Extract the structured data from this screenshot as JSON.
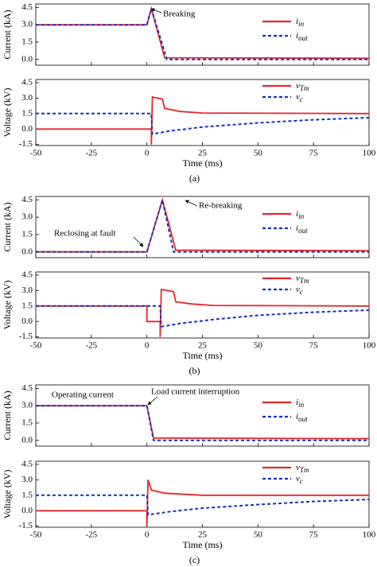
{
  "chart_data": [
    {
      "type": "line",
      "ylabel": "Current (kA)",
      "xlim": [
        -50,
        100
      ],
      "ylim": [
        -0.5,
        4.8
      ],
      "xticks": [
        -50,
        -25,
        0,
        25,
        50,
        75,
        100
      ],
      "xtick_labels": false,
      "yticks": [
        {
          "value": 0,
          "label": "0.0"
        },
        1.5,
        {
          "value": 3,
          "label": "3.0"
        },
        4.5
      ],
      "annotations": [
        "Breaking"
      ],
      "series": [
        {
          "name": "i",
          "subscript": "in",
          "color": "#e3262b",
          "dash": false,
          "x": [
            -50,
            0,
            2,
            8,
            100
          ],
          "values": [
            3.0,
            3.0,
            4.4,
            0.15,
            0.1
          ]
        },
        {
          "name": "i",
          "subscript": "out",
          "color": "#1a2fc0",
          "dash": true,
          "x": [
            -50,
            0,
            2,
            9,
            100
          ],
          "values": [
            3.0,
            3.0,
            4.4,
            0.0,
            0.0
          ]
        }
      ]
    },
    {
      "type": "line",
      "ylabel": "Voltage (kV)",
      "xlabel": "Time (ms)",
      "caption": "(a)",
      "xlim": [
        -50,
        100
      ],
      "ylim": [
        -1.6,
        4.8
      ],
      "xticks": [
        -50,
        -25,
        0,
        25,
        50,
        75,
        100
      ],
      "xtick_labels": true,
      "yticks": [
        -1.5,
        {
          "value": 0,
          "label": "0.0"
        },
        1.5,
        {
          "value": 3,
          "label": "3.0"
        },
        4.5
      ],
      "series": [
        {
          "name": "v",
          "subscript": "Tm",
          "color": "#e3262b",
          "dash": false,
          "x": [
            -50,
            2,
            2,
            2.5,
            7,
            8,
            15,
            25,
            100
          ],
          "values": [
            0,
            0,
            -1.5,
            3.1,
            2.9,
            2.0,
            1.7,
            1.55,
            1.5
          ]
        },
        {
          "name": "v",
          "subscript": "c",
          "color": "#1a2fc0",
          "dash": true,
          "x": [
            -50,
            2,
            2.5,
            10,
            25,
            50,
            75,
            100
          ],
          "values": [
            1.5,
            1.5,
            -0.5,
            -0.2,
            0.2,
            0.6,
            0.9,
            1.1
          ]
        }
      ]
    },
    {
      "type": "line",
      "ylabel": "Current (kA)",
      "xlim": [
        -50,
        100
      ],
      "ylim": [
        -0.5,
        4.8
      ],
      "xticks": [
        -50,
        -25,
        0,
        25,
        50,
        75,
        100
      ],
      "xtick_labels": false,
      "yticks": [
        {
          "value": 0,
          "label": "0.0"
        },
        1.5,
        {
          "value": 3,
          "label": "3.0"
        },
        4.5
      ],
      "annotations": [
        "Re-breaking",
        "Reclosing at fault"
      ],
      "series": [
        {
          "name": "i",
          "subscript": "in",
          "color": "#e3262b",
          "dash": false,
          "x": [
            -50,
            0,
            7,
            13,
            100
          ],
          "values": [
            0,
            0,
            4.5,
            0.15,
            0.1
          ]
        },
        {
          "name": "i",
          "subscript": "out",
          "color": "#1a2fc0",
          "dash": true,
          "x": [
            -50,
            0,
            7,
            12,
            100
          ],
          "values": [
            0,
            0,
            4.5,
            0,
            0
          ]
        }
      ]
    },
    {
      "type": "line",
      "ylabel": "Voltage (kV)",
      "xlabel": "Time (ms)",
      "caption": "(b)",
      "xlim": [
        -50,
        100
      ],
      "ylim": [
        -1.6,
        4.8
      ],
      "xticks": [
        -50,
        -25,
        0,
        25,
        50,
        75,
        100
      ],
      "xtick_labels": true,
      "yticks": [
        -1.5,
        {
          "value": 0,
          "label": "0.0"
        },
        1.5,
        {
          "value": 3,
          "label": "3.0"
        },
        4.5
      ],
      "series": [
        {
          "name": "v",
          "subscript": "Tm",
          "color": "#e3262b",
          "dash": false,
          "x": [
            -50,
            0,
            0,
            6,
            6,
            6.5,
            12,
            13,
            20,
            30,
            100
          ],
          "values": [
            1.5,
            1.5,
            0,
            0,
            -1.5,
            3.1,
            2.9,
            1.9,
            1.7,
            1.55,
            1.5
          ]
        },
        {
          "name": "v",
          "subscript": "c",
          "color": "#1a2fc0",
          "dash": true,
          "x": [
            -50,
            6,
            6.5,
            15,
            30,
            50,
            75,
            100
          ],
          "values": [
            1.5,
            1.5,
            -0.5,
            -0.2,
            0.2,
            0.6,
            0.9,
            1.1
          ]
        }
      ]
    },
    {
      "type": "line",
      "ylabel": "Current (kA)",
      "xlim": [
        -50,
        100
      ],
      "ylim": [
        -0.5,
        4.8
      ],
      "xticks": [
        -50,
        -25,
        0,
        25,
        50,
        75,
        100
      ],
      "xtick_labels": false,
      "yticks": [
        {
          "value": 0,
          "label": "0.0"
        },
        1.5,
        {
          "value": 3,
          "label": "3.0"
        },
        4.5
      ],
      "annotations": [
        "Operating current",
        "Load current interruption"
      ],
      "series": [
        {
          "name": "i",
          "subscript": "in",
          "color": "#e3262b",
          "dash": false,
          "x": [
            -50,
            0,
            3,
            100
          ],
          "values": [
            3.0,
            3.0,
            0.2,
            0.15
          ]
        },
        {
          "name": "i",
          "subscript": "out",
          "color": "#1a2fc0",
          "dash": true,
          "x": [
            -50,
            0,
            3,
            100
          ],
          "values": [
            3.0,
            3.0,
            0,
            0
          ]
        }
      ]
    },
    {
      "type": "line",
      "ylabel": "Voltage (kV)",
      "xlabel": "Time (ms)",
      "caption": "(c)",
      "xlim": [
        -50,
        100
      ],
      "ylim": [
        -1.6,
        4.8
      ],
      "xticks": [
        -50,
        -25,
        0,
        25,
        50,
        75,
        100
      ],
      "xtick_labels": true,
      "yticks": [
        -1.5,
        {
          "value": 0,
          "label": "0.0"
        },
        1.5,
        {
          "value": 3,
          "label": "3.0"
        },
        4.5
      ],
      "series": [
        {
          "name": "v",
          "subscript": "Tm",
          "color": "#e3262b",
          "dash": false,
          "x": [
            -50,
            0,
            0,
            0.5,
            2,
            8,
            25,
            100
          ],
          "values": [
            0,
            0,
            -1.5,
            3.0,
            2.0,
            1.7,
            1.5,
            1.5
          ]
        },
        {
          "name": "v",
          "subscript": "c",
          "color": "#1a2fc0",
          "dash": true,
          "x": [
            -50,
            0,
            0.5,
            10,
            25,
            50,
            75,
            100
          ],
          "values": [
            1.5,
            1.5,
            -0.4,
            -0.1,
            0.25,
            0.6,
            0.9,
            1.1
          ]
        }
      ]
    }
  ]
}
